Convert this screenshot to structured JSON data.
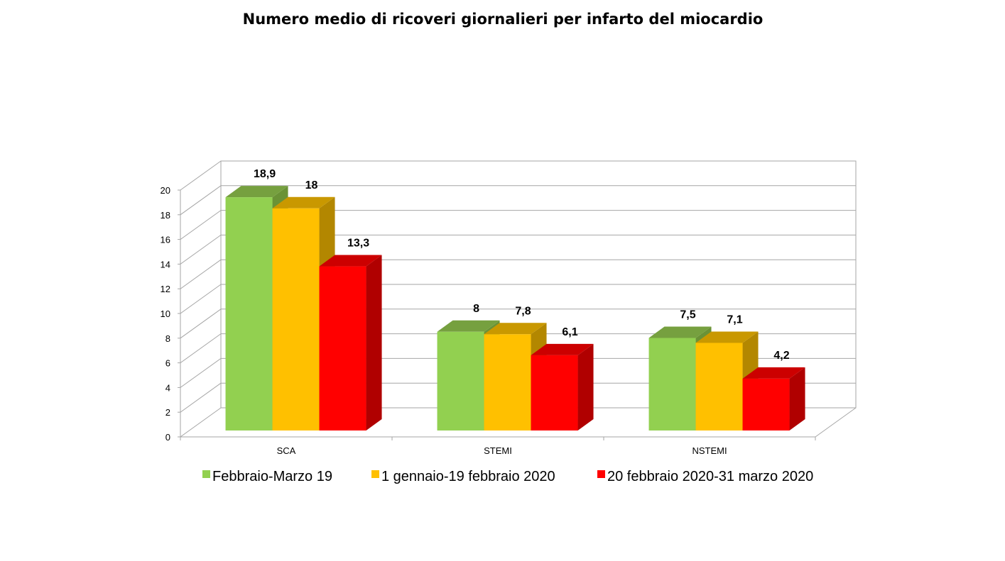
{
  "chart_data": {
    "type": "bar",
    "title": "Numero medio di ricoveri giornalieri per infarto del miocardio",
    "categories": [
      "SCA",
      "STEMI",
      "NSTEMI"
    ],
    "series": [
      {
        "name": "Febbraio-Marzo 19",
        "values": [
          18.9,
          8,
          7.5
        ],
        "labels": [
          "18,9",
          "8",
          "7,5"
        ],
        "color": "#92d050",
        "top_color": "#76a03f",
        "side_color": "#6a9236"
      },
      {
        "name": "1 gennaio-19 febbraio 2020",
        "values": [
          18,
          7.8,
          7.1
        ],
        "labels": [
          "18",
          "7,8",
          "7,1"
        ],
        "color": "#ffc000",
        "top_color": "#c99800",
        "side_color": "#b38700"
      },
      {
        "name": "20 febbraio 2020-31 marzo 2020",
        "values": [
          13.3,
          6.1,
          4.2
        ],
        "labels": [
          "13,3",
          "6,1",
          "4,2"
        ],
        "color": "#ff0000",
        "top_color": "#cc0000",
        "side_color": "#b00000"
      }
    ],
    "ylim": [
      0,
      20
    ],
    "yticks": [
      0,
      2,
      4,
      6,
      8,
      10,
      12,
      14,
      16,
      18,
      20
    ],
    "grid": true,
    "three_d": true,
    "legend_position": "bottom"
  }
}
